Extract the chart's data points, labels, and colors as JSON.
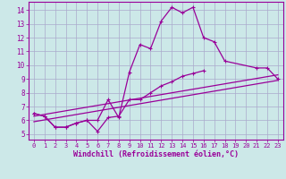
{
  "xlabel": "Windchill (Refroidissement éolien,°C)",
  "bg_color": "#cce8e8",
  "grid_color": "#aaaacc",
  "line_color": "#990099",
  "x_ticks": [
    0,
    1,
    2,
    3,
    4,
    5,
    6,
    7,
    8,
    9,
    10,
    11,
    12,
    13,
    14,
    15,
    16,
    17,
    18,
    19,
    20,
    21,
    22,
    23
  ],
  "y_ticks": [
    5,
    6,
    7,
    8,
    9,
    10,
    11,
    12,
    13,
    14
  ],
  "xlim": [
    -0.5,
    23.5
  ],
  "ylim": [
    4.6,
    14.6
  ],
  "series": [
    {
      "x": [
        0,
        1,
        2,
        3,
        4,
        5,
        6,
        7,
        8,
        9,
        10,
        11,
        12,
        13,
        14,
        15,
        16,
        17,
        18,
        21,
        22,
        23
      ],
      "y": [
        6.5,
        6.3,
        5.5,
        5.5,
        5.8,
        6.0,
        6.0,
        7.5,
        6.2,
        9.5,
        11.5,
        11.2,
        13.2,
        14.2,
        13.8,
        14.2,
        12.0,
        11.7,
        10.3,
        9.8,
        9.8,
        9.0
      ]
    },
    {
      "x": [
        0,
        1,
        2,
        3,
        4,
        5,
        6,
        7,
        8,
        9,
        10,
        11,
        12,
        13,
        14,
        15,
        16
      ],
      "y": [
        6.5,
        6.3,
        5.5,
        5.5,
        5.8,
        6.0,
        5.2,
        6.2,
        6.3,
        7.5,
        7.5,
        8.0,
        8.5,
        8.8,
        9.2,
        9.4,
        9.6
      ]
    },
    {
      "x": [
        0,
        23
      ],
      "y": [
        6.3,
        9.3
      ]
    },
    {
      "x": [
        0,
        23
      ],
      "y": [
        5.9,
        8.9
      ]
    }
  ]
}
